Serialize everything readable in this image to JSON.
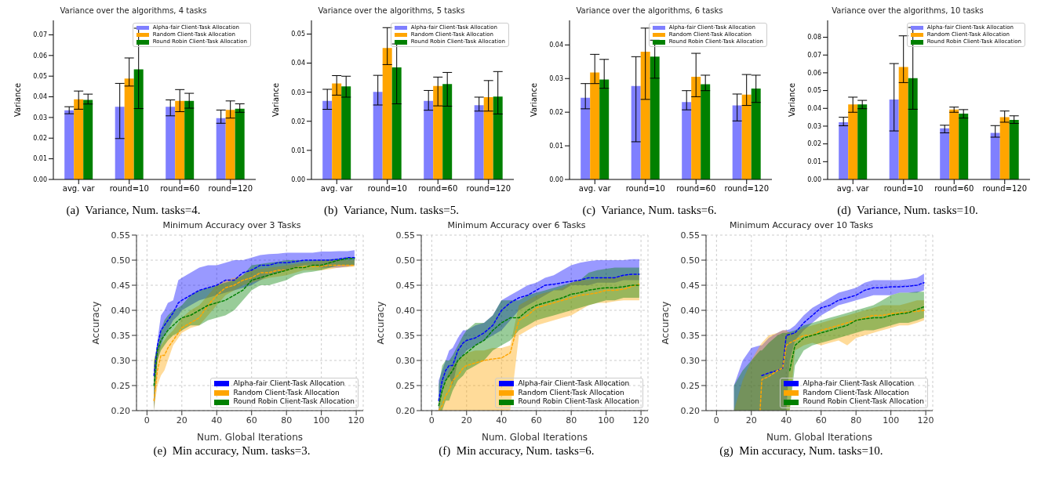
{
  "chart_data": [
    {
      "type": "bar",
      "title": "Variance over the algorithms, 4 tasks",
      "ylabel": "Variance",
      "categories": [
        "avg. var",
        "round=10",
        "round=60",
        "round=120"
      ],
      "legend": "top right",
      "ylim": [
        0,
        0.077
      ],
      "yticks": [
        {
          "value": 0,
          "label": "0.00"
        },
        0.01,
        0.02,
        0.03,
        0.04,
        0.05,
        0.06,
        0.07
      ],
      "annotations": [
        "(a)  Variance, Num. tasks=4."
      ],
      "series": [
        {
          "name": "Alpha-fair Client-Task Allocation",
          "color": "#7f7fff",
          "values": [
            0.0335,
            0.0352,
            0.0352,
            0.0297
          ],
          "errors": [
            [
              0.0318,
              0.0352
            ],
            [
              0.0198,
              0.0465
            ],
            [
              0.0308,
              0.0385
            ],
            [
              0.0272,
              0.0336
            ]
          ]
        },
        {
          "name": "Random Client-Task Allocation",
          "color": "#ffa500",
          "values": [
            0.0388,
            0.0488,
            0.038,
            0.0337
          ],
          "errors": [
            [
              0.034,
              0.0428
            ],
            [
              0.0452,
              0.0588
            ],
            [
              0.0328,
              0.0435
            ],
            [
              0.0297,
              0.038
            ]
          ]
        },
        {
          "name": "Round Robin Client-Task Allocation",
          "color": "#008000",
          "values": [
            0.0385,
            0.0533,
            0.038,
            0.0342
          ],
          "errors": [
            [
              0.0365,
              0.0413
            ],
            [
              0.0343,
              0.0732
            ],
            [
              0.0345,
              0.0417
            ],
            [
              0.0325,
              0.0366
            ]
          ]
        }
      ]
    },
    {
      "type": "bar",
      "title": "Variance over the algorithms, 5 tasks",
      "ylabel": "Variance",
      "categories": [
        "avg. var",
        "round=10",
        "round=60",
        "round=120"
      ],
      "legend": "top right",
      "ylim": [
        0,
        0.0547
      ],
      "yticks": [
        {
          "value": 0,
          "label": "0.00"
        },
        0.01,
        0.02,
        0.03,
        0.04,
        0.05
      ],
      "annotations": [
        "(b)  Variance, Num. tasks=5."
      ],
      "series": [
        {
          "name": "Alpha-fair Client-Task Allocation",
          "color": "#7f7fff",
          "values": [
            0.027,
            0.0301,
            0.027,
            0.0255
          ],
          "errors": [
            [
              0.0241,
              0.031
            ],
            [
              0.0256,
              0.0358
            ],
            [
              0.0238,
              0.0306
            ],
            [
              0.0235,
              0.0283
            ]
          ]
        },
        {
          "name": "Random Client-Task Allocation",
          "color": "#ffa500",
          "values": [
            0.033,
            0.0452,
            0.0321,
            0.0283
          ],
          "errors": [
            [
              0.029,
              0.0357
            ],
            [
              0.0395,
              0.0522
            ],
            [
              0.0253,
              0.0352
            ],
            [
              0.0235,
              0.034
            ]
          ]
        },
        {
          "name": "Round Robin Client-Task Allocation",
          "color": "#008000",
          "values": [
            0.032,
            0.0385,
            0.0328,
            0.0285
          ],
          "errors": [
            [
              0.0283,
              0.0355
            ],
            [
              0.026,
              0.0466
            ],
            [
              0.0252,
              0.0368
            ],
            [
              0.0225,
              0.0371
            ]
          ]
        }
      ]
    },
    {
      "type": "bar",
      "title": "Variance over the algorithms, 6 tasks",
      "ylabel": "Variance",
      "categories": [
        "avg. var",
        "round=10",
        "round=60",
        "round=120"
      ],
      "legend": "top right",
      "ylim": [
        0,
        0.0473
      ],
      "yticks": [
        {
          "value": 0,
          "label": "0.00"
        },
        0.01,
        0.02,
        0.03,
        0.04
      ],
      "annotations": [
        "(c)  Variance, Num. tasks=6."
      ],
      "series": [
        {
          "name": "Alpha-fair Client-Task Allocation",
          "color": "#7f7fff",
          "values": [
            0.0243,
            0.0278,
            0.023,
            0.022
          ],
          "errors": [
            [
              0.021,
              0.0285
            ],
            [
              0.0112,
              0.0365
            ],
            [
              0.0207,
              0.0264
            ],
            [
              0.0174,
              0.0254
            ]
          ]
        },
        {
          "name": "Random Client-Task Allocation",
          "color": "#ffa500",
          "values": [
            0.0318,
            0.038,
            0.0305,
            0.0252
          ],
          "errors": [
            [
              0.0285,
              0.0372
            ],
            [
              0.0238,
              0.045
            ],
            [
              0.0246,
              0.0375
            ],
            [
              0.022,
              0.0312
            ]
          ]
        },
        {
          "name": "Round Robin Client-Task Allocation",
          "color": "#008000",
          "values": [
            0.0297,
            0.0365,
            0.0283,
            0.027
          ],
          "errors": [
            [
              0.0271,
              0.0357
            ],
            [
              0.0301,
              0.0414
            ],
            [
              0.0264,
              0.031
            ],
            [
              0.0229,
              0.031
            ]
          ]
        }
      ]
    },
    {
      "type": "bar",
      "title": "Variance over the algorithms, 10 tasks",
      "ylabel": "Variance",
      "categories": [
        "avg. var",
        "round=10",
        "round=60",
        "round=120"
      ],
      "legend": "top right",
      "ylim": [
        0,
        0.0895
      ],
      "yticks": [
        {
          "value": 0,
          "label": "0.00"
        },
        0.01,
        0.02,
        0.03,
        0.04,
        0.05,
        0.06,
        0.07,
        0.08
      ],
      "annotations": [
        "(d)  Variance, Num. tasks=10."
      ],
      "series": [
        {
          "name": "Alpha-fair Client-Task Allocation",
          "color": "#7f7fff",
          "values": [
            0.0322,
            0.045,
            0.0288,
            0.0262
          ],
          "errors": [
            [
              0.0302,
              0.035
            ],
            [
              0.0273,
              0.0652
            ],
            [
              0.0262,
              0.0305
            ],
            [
              0.0238,
              0.0303
            ]
          ]
        },
        {
          "name": "Random Client-Task Allocation",
          "color": "#ffa500",
          "values": [
            0.0422,
            0.0633,
            0.0393,
            0.0351
          ],
          "errors": [
            [
              0.0378,
              0.0463
            ],
            [
              0.0545,
              0.0808
            ],
            [
              0.0378,
              0.0407
            ],
            [
              0.0322,
              0.0385
            ]
          ]
        },
        {
          "name": "Round Robin Client-Task Allocation",
          "color": "#008000",
          "values": [
            0.0422,
            0.057,
            0.037,
            0.0335
          ],
          "errors": [
            [
              0.0398,
              0.0445
            ],
            [
              0.0395,
              0.0855
            ],
            [
              0.0345,
              0.0393
            ],
            [
              0.0315,
              0.0358
            ]
          ]
        }
      ]
    },
    {
      "type": "line",
      "title": "Minimum Accuracy over 3 Tasks",
      "xlabel": "Num. Global Iterations",
      "ylabel": "Accuracy",
      "legend": "bottom right",
      "grid": true,
      "line_style": "dashed",
      "xlim": [
        -6,
        124
      ],
      "xticks": [
        0,
        20,
        40,
        60,
        80,
        100,
        120
      ],
      "ylim": [
        0.2,
        0.55
      ],
      "yticks": [
        {
          "value": 0.2,
          "label": "0.20"
        },
        0.25,
        {
          "value": 0.3,
          "label": "0.30"
        },
        0.35,
        {
          "value": 0.4,
          "label": "0.40"
        },
        0.45,
        {
          "value": 0.5,
          "label": "0.50"
        },
        0.55
      ],
      "annotations": [
        "(e)  Min accuracy, Num. tasks=3."
      ],
      "x": [
        4,
        6,
        8,
        10,
        12,
        15,
        18,
        20,
        25,
        30,
        35,
        40,
        45,
        50,
        55,
        60,
        65,
        70,
        75,
        80,
        85,
        90,
        95,
        100,
        105,
        110,
        115,
        119
      ],
      "series": [
        {
          "name": "Alpha-fair Client-Task Allocation",
          "color": "#0000ff",
          "values": [
            0.27,
            0.33,
            0.36,
            0.37,
            0.38,
            0.395,
            0.415,
            0.42,
            0.43,
            0.44,
            0.445,
            0.45,
            0.46,
            0.46,
            0.475,
            0.48,
            0.49,
            0.49,
            0.495,
            0.495,
            0.497,
            0.5,
            0.5,
            0.5,
            0.5,
            0.502,
            0.505,
            0.505
          ],
          "upper": [
            0.29,
            0.34,
            0.39,
            0.4,
            0.415,
            0.42,
            0.46,
            0.465,
            0.475,
            0.485,
            0.49,
            0.49,
            0.495,
            0.5,
            0.5,
            0.505,
            0.51,
            0.512,
            0.513,
            0.515,
            0.515,
            0.515,
            0.515,
            0.517,
            0.517,
            0.518,
            0.518,
            0.52
          ],
          "lower": [
            0.2,
            0.3,
            0.33,
            0.35,
            0.36,
            0.38,
            0.39,
            0.4,
            0.41,
            0.42,
            0.425,
            0.43,
            0.435,
            0.44,
            0.445,
            0.45,
            0.46,
            0.47,
            0.475,
            0.48,
            0.485,
            0.49,
            0.49,
            0.485,
            0.485,
            0.485,
            0.487,
            0.49
          ]
        },
        {
          "name": "Random Client-Task Allocation",
          "color": "#ffa500",
          "values": [
            0.22,
            0.28,
            0.31,
            0.31,
            0.325,
            0.34,
            0.355,
            0.365,
            0.375,
            0.385,
            0.41,
            0.43,
            0.445,
            0.45,
            0.46,
            0.465,
            0.475,
            0.475,
            0.48,
            0.48,
            0.485,
            0.487,
            0.487,
            0.488,
            0.49,
            0.49,
            0.49,
            0.49
          ],
          "upper": [
            0.3,
            0.32,
            0.33,
            0.34,
            0.35,
            0.36,
            0.375,
            0.385,
            0.4,
            0.41,
            0.43,
            0.45,
            0.46,
            0.465,
            0.47,
            0.48,
            0.482,
            0.485,
            0.487,
            0.49,
            0.492,
            0.495,
            0.497,
            0.5,
            0.5,
            0.5,
            0.5,
            0.5
          ],
          "lower": [
            0.2,
            0.25,
            0.27,
            0.28,
            0.3,
            0.33,
            0.345,
            0.355,
            0.365,
            0.37,
            0.39,
            0.41,
            0.43,
            0.44,
            0.45,
            0.455,
            0.46,
            0.465,
            0.467,
            0.47,
            0.475,
            0.48,
            0.48,
            0.48,
            0.482,
            0.485,
            0.486,
            0.487
          ]
        },
        {
          "name": "Round Robin Client-Task Allocation",
          "color": "#008000",
          "values": [
            0.25,
            0.32,
            0.34,
            0.35,
            0.36,
            0.37,
            0.38,
            0.385,
            0.39,
            0.4,
            0.41,
            0.415,
            0.42,
            0.43,
            0.44,
            0.46,
            0.465,
            0.47,
            0.475,
            0.48,
            0.485,
            0.485,
            0.49,
            0.49,
            0.495,
            0.5,
            0.503,
            0.503
          ],
          "upper": [
            0.3,
            0.33,
            0.36,
            0.38,
            0.39,
            0.4,
            0.405,
            0.41,
            0.43,
            0.44,
            0.445,
            0.45,
            0.455,
            0.46,
            0.47,
            0.49,
            0.492,
            0.495,
            0.497,
            0.5,
            0.5,
            0.5,
            0.5,
            0.5,
            0.502,
            0.503,
            0.505,
            0.505
          ],
          "lower": [
            0.2,
            0.3,
            0.32,
            0.33,
            0.34,
            0.35,
            0.355,
            0.36,
            0.37,
            0.37,
            0.38,
            0.385,
            0.39,
            0.4,
            0.42,
            0.44,
            0.45,
            0.45,
            0.455,
            0.46,
            0.47,
            0.475,
            0.477,
            0.48,
            0.485,
            0.49,
            0.49,
            0.49
          ]
        }
      ]
    },
    {
      "type": "line",
      "title": "Minimum Accuracy over 6 Tasks",
      "xlabel": "Num. Global Iterations",
      "ylabel": "Accuracy",
      "legend": "bottom right",
      "grid": true,
      "line_style": "dashed",
      "xlim": [
        -6,
        124
      ],
      "xticks": [
        0,
        20,
        40,
        60,
        80,
        100,
        120
      ],
      "ylim": [
        0.2,
        0.55
      ],
      "yticks": [
        {
          "value": 0.2,
          "label": "0.20"
        },
        0.25,
        {
          "value": 0.3,
          "label": "0.30"
        },
        0.35,
        {
          "value": 0.4,
          "label": "0.40"
        },
        0.45,
        {
          "value": 0.5,
          "label": "0.50"
        },
        0.55
      ],
      "annotations": [
        "(f)  Min accuracy, Num. tasks=6."
      ],
      "x": [
        4,
        6,
        8,
        10,
        12,
        15,
        18,
        20,
        25,
        30,
        35,
        40,
        45,
        50,
        55,
        60,
        65,
        70,
        75,
        80,
        85,
        90,
        95,
        100,
        105,
        110,
        115,
        119
      ],
      "series": [
        {
          "name": "Alpha-fair Client-Task Allocation",
          "color": "#0000ff",
          "values": [
            0.22,
            0.26,
            0.28,
            0.29,
            0.29,
            0.32,
            0.335,
            0.34,
            0.345,
            0.355,
            0.37,
            0.4,
            0.415,
            0.425,
            0.43,
            0.44,
            0.45,
            0.452,
            0.455,
            0.458,
            0.46,
            0.465,
            0.465,
            0.465,
            0.465,
            0.47,
            0.472,
            0.472
          ],
          "upper": [
            0.26,
            0.28,
            0.3,
            0.32,
            0.325,
            0.345,
            0.36,
            0.36,
            0.37,
            0.375,
            0.39,
            0.42,
            0.43,
            0.44,
            0.45,
            0.455,
            0.465,
            0.47,
            0.48,
            0.49,
            0.495,
            0.498,
            0.5,
            0.5,
            0.5,
            0.5,
            0.502,
            0.502
          ],
          "lower": [
            0.2,
            0.24,
            0.26,
            0.27,
            0.25,
            0.3,
            0.31,
            0.32,
            0.33,
            0.34,
            0.35,
            0.36,
            0.38,
            0.4,
            0.41,
            0.42,
            0.43,
            0.44,
            0.44,
            0.45,
            0.45,
            0.45,
            0.455,
            0.455,
            0.455,
            0.46,
            0.46,
            0.46
          ]
        },
        {
          "name": "Random Client-Task Allocation",
          "color": "#ffa500",
          "values": [
            0.2,
            0.21,
            0.23,
            0.24,
            0.26,
            0.27,
            0.285,
            0.29,
            0.295,
            0.3,
            0.303,
            0.305,
            0.315,
            0.38,
            0.39,
            0.405,
            0.41,
            0.415,
            0.42,
            0.425,
            0.43,
            0.432,
            0.435,
            0.44,
            0.44,
            0.442,
            0.448,
            0.452
          ],
          "upper": [
            0.22,
            0.24,
            0.26,
            0.28,
            0.29,
            0.3,
            0.31,
            0.315,
            0.32,
            0.32,
            0.325,
            0.325,
            0.33,
            0.41,
            0.42,
            0.43,
            0.435,
            0.44,
            0.445,
            0.455,
            0.46,
            0.46,
            0.462,
            0.465,
            0.465,
            0.468,
            0.47,
            0.47
          ],
          "lower": [
            0.2,
            0.2,
            0.2,
            0.2,
            0.2,
            0.2,
            0.2,
            0.2,
            0.2,
            0.2,
            0.2,
            0.2,
            0.2,
            0.35,
            0.36,
            0.37,
            0.375,
            0.38,
            0.385,
            0.39,
            0.4,
            0.41,
            0.415,
            0.415,
            0.418,
            0.42,
            0.42,
            0.42
          ]
        },
        {
          "name": "Round Robin Client-Task Allocation",
          "color": "#008000",
          "values": [
            0.21,
            0.24,
            0.26,
            0.27,
            0.28,
            0.3,
            0.31,
            0.315,
            0.33,
            0.34,
            0.36,
            0.375,
            0.385,
            0.385,
            0.4,
            0.41,
            0.415,
            0.42,
            0.425,
            0.432,
            0.435,
            0.44,
            0.443,
            0.445,
            0.445,
            0.447,
            0.45,
            0.45
          ],
          "upper": [
            0.25,
            0.29,
            0.3,
            0.3,
            0.31,
            0.33,
            0.35,
            0.36,
            0.375,
            0.375,
            0.39,
            0.42,
            0.42,
            0.42,
            0.43,
            0.435,
            0.44,
            0.445,
            0.45,
            0.455,
            0.46,
            0.475,
            0.48,
            0.483,
            0.485,
            0.485,
            0.485,
            0.485
          ],
          "lower": [
            0.2,
            0.2,
            0.22,
            0.22,
            0.24,
            0.26,
            0.27,
            0.28,
            0.29,
            0.3,
            0.32,
            0.33,
            0.34,
            0.36,
            0.37,
            0.38,
            0.385,
            0.39,
            0.395,
            0.4,
            0.405,
            0.41,
            0.415,
            0.42,
            0.42,
            0.425,
            0.425,
            0.425
          ]
        }
      ]
    },
    {
      "type": "line",
      "title": "Minimum Accuracy over 10 Tasks",
      "xlabel": "Num. Global Iterations",
      "ylabel": "Accuracy",
      "legend": "bottom right",
      "grid": true,
      "line_style": "dashed",
      "xlim": [
        -6,
        124
      ],
      "xticks": [
        0,
        20,
        40,
        60,
        80,
        100,
        120
      ],
      "ylim": [
        0.2,
        0.55
      ],
      "yticks": [
        {
          "value": 0.2,
          "label": "0.20"
        },
        0.25,
        {
          "value": 0.3,
          "label": "0.30"
        },
        0.35,
        {
          "value": 0.4,
          "label": "0.40"
        },
        0.45,
        {
          "value": 0.5,
          "label": "0.50"
        },
        0.55
      ],
      "annotations": [
        "(g)  Min accuracy, Num. tasks=10."
      ],
      "x": [
        10,
        15,
        20,
        25,
        26,
        30,
        35,
        38,
        40,
        42,
        45,
        50,
        55,
        60,
        65,
        70,
        75,
        80,
        85,
        90,
        95,
        100,
        105,
        110,
        115,
        119
      ],
      "series": [
        {
          "name": "Alpha-fair Client-Task Allocation",
          "color": "#0000ff",
          "values": [
            null,
            null,
            null,
            null,
            0.27,
            0.275,
            0.28,
            0.285,
            0.35,
            0.352,
            0.355,
            0.375,
            0.39,
            0.405,
            0.41,
            0.42,
            0.425,
            0.43,
            0.44,
            0.445,
            0.445,
            0.447,
            0.447,
            0.448,
            0.45,
            0.455
          ],
          "upper": [
            0.25,
            0.3,
            0.325,
            0.33,
            0.33,
            0.345,
            0.355,
            0.36,
            0.36,
            0.362,
            0.37,
            0.39,
            0.405,
            0.415,
            0.425,
            0.435,
            0.44,
            0.445,
            0.455,
            0.46,
            0.46,
            0.46,
            0.46,
            0.462,
            0.465,
            0.473
          ],
          "lower": [
            0.2,
            0.2,
            0.2,
            0.2,
            0.2,
            0.2,
            0.2,
            0.2,
            0.2,
            0.3,
            0.34,
            0.36,
            0.375,
            0.39,
            0.4,
            0.41,
            0.415,
            0.42,
            0.425,
            0.43,
            0.43,
            0.43,
            0.435,
            0.435,
            0.435,
            0.44
          ]
        },
        {
          "name": "Random Client-Task Allocation",
          "color": "#ffa500",
          "values": [
            null,
            null,
            null,
            0.2,
            0.262,
            0.268,
            0.28,
            0.285,
            0.33,
            0.335,
            0.34,
            0.35,
            0.35,
            0.36,
            0.365,
            0.37,
            0.375,
            0.38,
            0.385,
            0.39,
            0.39,
            0.393,
            0.395,
            0.397,
            0.398,
            0.4
          ],
          "upper": [
            0.2,
            0.26,
            0.3,
            0.33,
            0.335,
            0.35,
            0.355,
            0.36,
            0.36,
            0.355,
            0.355,
            0.365,
            0.37,
            0.375,
            0.38,
            0.385,
            0.39,
            0.395,
            0.4,
            0.405,
            0.41,
            0.41,
            0.41,
            0.415,
            0.42,
            0.42
          ],
          "lower": [
            0.2,
            0.2,
            0.2,
            0.2,
            0.2,
            0.2,
            0.2,
            0.2,
            0.2,
            0.2,
            0.32,
            0.33,
            0.335,
            0.33,
            0.335,
            0.34,
            0.33,
            0.345,
            0.35,
            0.355,
            0.36,
            0.365,
            0.37,
            0.37,
            0.375,
            0.38
          ]
        },
        {
          "name": "Round Robin Client-Task Allocation",
          "color": "#008000",
          "values": [
            null,
            null,
            null,
            null,
            null,
            null,
            null,
            null,
            null,
            0.28,
            0.33,
            0.345,
            0.35,
            0.355,
            0.36,
            0.365,
            0.37,
            0.38,
            0.383,
            0.385,
            0.385,
            0.39,
            0.393,
            0.395,
            0.402,
            0.407
          ],
          "upper": [
            0.25,
            0.28,
            0.3,
            0.32,
            0.32,
            0.335,
            0.35,
            0.355,
            0.355,
            0.357,
            0.36,
            0.37,
            0.375,
            0.38,
            0.385,
            0.39,
            0.395,
            0.4,
            0.405,
            0.41,
            0.42,
            0.43,
            0.435,
            0.435,
            0.437,
            0.437
          ],
          "lower": [
            0.2,
            0.2,
            0.2,
            0.2,
            0.2,
            0.2,
            0.2,
            0.2,
            0.2,
            0.2,
            0.29,
            0.32,
            0.33,
            0.335,
            0.34,
            0.345,
            0.35,
            0.355,
            0.36,
            0.36,
            0.365,
            0.37,
            0.375,
            0.375,
            0.38,
            0.385
          ]
        }
      ]
    }
  ]
}
